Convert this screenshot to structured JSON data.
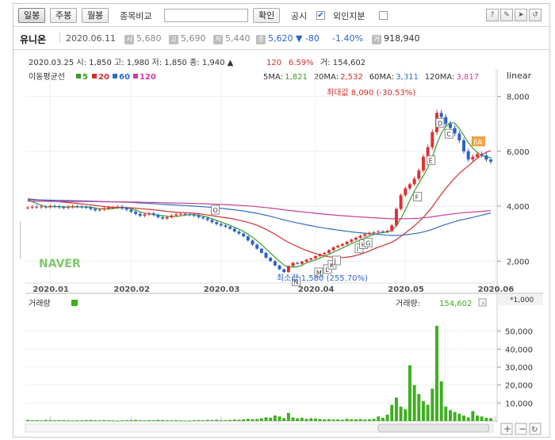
{
  "toolbar": {
    "daily": "일봉",
    "weekly": "주봉",
    "monthly": "월봉",
    "compare_label": "종목비교",
    "confirm": "확인",
    "disclosure": "공시",
    "disclosure_checked": "✔",
    "foreign": "외인지분"
  },
  "info": {
    "name": "유니온",
    "date": "2020.06.11",
    "open_tag": "시",
    "open": "5,680",
    "high_tag": "고",
    "high": "5,690",
    "low_tag": "저",
    "low": "5,440",
    "close_tag": "종",
    "close": "5,620",
    "change": "▼ -80",
    "change_pct": "-1.40%",
    "volume_tag": "거",
    "volume": "918,940"
  },
  "chart_header": {
    "line1_prefix": "2020.03.25  시: 1,850  고: 1,980  저: 1,850  종: 1,940 ▲",
    "line1_change": "120",
    "line1_pct": "6.59%",
    "line1_volume": "거: 154,602",
    "ma_label": "이동평균선",
    "ma5": "5",
    "ma20": "20",
    "ma60": "60",
    "ma120": "120",
    "ma_values": [
      {
        "label": "5MA:",
        "value": "1,821",
        "color": "#3a9b2a"
      },
      {
        "label": "20MA:",
        "value": "2,532",
        "color": "#d12f2f"
      },
      {
        "label": "60MA:",
        "value": "3,311",
        "color": "#2f6fc0"
      },
      {
        "label": "120MA:",
        "value": "3,817",
        "color": "#c83f9c"
      }
    ],
    "scale": "linear",
    "max_note": "최대값 8,090 (-30.53%)",
    "min_note": "최소값 1,580 (255.70%)",
    "watermark": "NAVER",
    "volume_title": "거래량",
    "volume_label": "거래량:",
    "volume_value": "154,602",
    "volume_unit": "*1,000"
  },
  "colors": {
    "up": "#e03131",
    "down": "#2b63c9",
    "ma5": "#3a9b2a",
    "ma20": "#d12f2f",
    "ma60": "#2f6fc0",
    "ma120": "#c83f9c",
    "volume": "#3fae1f"
  },
  "chart_data": {
    "type": "candlestick",
    "price_axis": {
      "ticks": [
        "8,000",
        "6,000",
        "4,000",
        "2,000"
      ],
      "values": [
        8000,
        6000,
        4000,
        2000
      ],
      "ylim": [
        1200,
        9000
      ],
      "scale": "linear"
    },
    "x_ticks": [
      "2020.01",
      "2020.02",
      "2020.03",
      "2020.04",
      "2020.05",
      "2020.06"
    ],
    "volume_axis": {
      "ticks": [
        "50,000",
        "40,000",
        "30,000",
        "20,000",
        "10,000"
      ],
      "values": [
        50000,
        40000,
        30000,
        20000,
        10000
      ],
      "ylim": [
        0,
        60000
      ],
      "unit": "*1,000"
    },
    "closes": [
      3950,
      3980,
      3960,
      3990,
      3970,
      4010,
      3990,
      3960,
      3940,
      3970,
      4000,
      3990,
      3970,
      3950,
      3900,
      3850,
      3880,
      3920,
      3950,
      3960,
      3980,
      3920,
      3870,
      3800,
      3720,
      3650,
      3700,
      3740,
      3680,
      3600,
      3550,
      3600,
      3660,
      3700,
      3720,
      3700,
      3680,
      3650,
      3600,
      3560,
      3500,
      3420,
      3350,
      3300,
      3250,
      3180,
      3080,
      3000,
      2900,
      2750,
      2600,
      2450,
      2300,
      2120,
      2000,
      1840,
      1700,
      1600,
      1820,
      1940,
      1900,
      1980,
      2050,
      2100,
      2180,
      2250,
      2300,
      2400,
      2500,
      2560,
      2620,
      2700,
      2780,
      2850,
      2920,
      2980,
      3030,
      3050,
      3080,
      3060,
      3100,
      3300,
      3900,
      4400,
      4650,
      4800,
      5000,
      5300,
      5800,
      6150,
      6700,
      7400,
      7250,
      7000,
      6850,
      6650,
      6400,
      6000,
      5700,
      5800,
      5900,
      5850,
      5700,
      5620
    ],
    "volume": [
      600,
      400,
      500,
      300,
      600,
      400,
      300,
      500,
      400,
      300,
      200,
      400,
      300,
      500,
      600,
      400,
      300,
      500,
      400,
      300,
      200,
      300,
      400,
      500,
      600,
      400,
      300,
      500,
      400,
      600,
      500,
      400,
      300,
      400,
      300,
      200,
      300,
      400,
      500,
      400,
      600,
      500,
      700,
      400,
      500,
      600,
      800,
      700,
      900,
      1200,
      1000,
      1100,
      1500,
      2000,
      1800,
      3000,
      2500,
      1600,
      4500,
      2000,
      1500,
      1800,
      1200,
      1500,
      1300,
      1100,
      900,
      1000,
      800,
      900,
      700,
      1200,
      1000,
      900,
      1100,
      800,
      900,
      1200,
      2500,
      1800,
      3500,
      9000,
      13000,
      8000,
      6500,
      31000,
      20000,
      15000,
      11000,
      9000,
      18000,
      53000,
      22000,
      8000,
      6000,
      5000,
      4000,
      3000,
      2000,
      5500,
      3000,
      2500,
      1800,
      1600
    ]
  },
  "annotations": {
    "pattern_labels": [
      "O",
      "N",
      "M",
      "L",
      "K",
      "J",
      "I",
      "H",
      "G",
      "F",
      "E",
      "D",
      "C",
      "EA"
    ]
  }
}
